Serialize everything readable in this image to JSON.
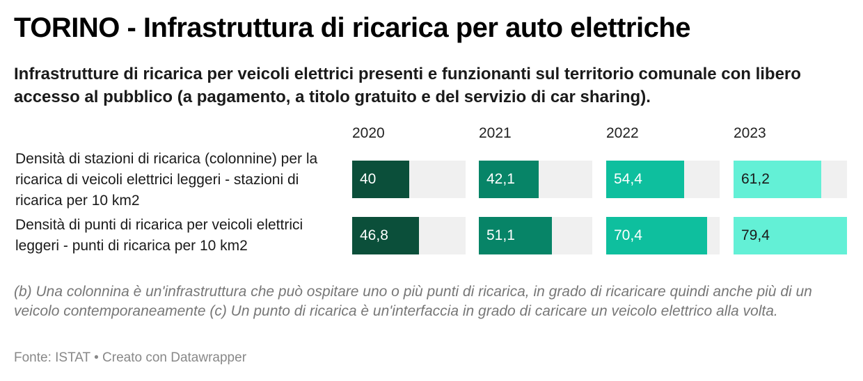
{
  "title": "TORINO - Infrastruttura di ricarica per auto elettriche",
  "subtitle": "Infrastrutture di ricarica per veicoli elettrici presenti e funzionanti sul territorio comunale con libero accesso al pubblico (a pagamento, a titolo gratuito e del servizio di car sharing).",
  "notes": "(b) Una colonnina è un'infrastruttura che può ospitare uno o più punti di ricarica, in grado di ricaricare quindi anche più di un veicolo contemporaneamente (c) Un punto di ricarica è un'interfaccia in grado di caricare un veicolo elettrico alla volta.",
  "footer": "Fonte: ISTAT • Creato con Datawrapper",
  "colors": {
    "2020": "#0b4f3a",
    "2021": "#078467",
    "2022": "#0ebf9e",
    "2023": "#63f0d6",
    "track": "#f0f0f0"
  },
  "chart_data": {
    "type": "bar",
    "categories": [
      "2020",
      "2021",
      "2022",
      "2023"
    ],
    "series": [
      {
        "name": "Densità di stazioni di ricarica (colonnine) per la ricarica di veicoli elettrici leggeri - stazioni di ricarica per 10 km2",
        "values": [
          40,
          42.1,
          54.4,
          61.2
        ],
        "labels": [
          "40",
          "42,1",
          "54,4",
          "61,2"
        ]
      },
      {
        "name": "Densità di punti di ricarica per veicoli elettrici leggeri - punti di ricarica per 10 km2",
        "values": [
          46.8,
          51.1,
          70.4,
          79.4
        ],
        "labels": [
          "46,8",
          "51,1",
          "70,4",
          "79,4"
        ]
      }
    ],
    "xlim": [
      0,
      79.4
    ]
  }
}
